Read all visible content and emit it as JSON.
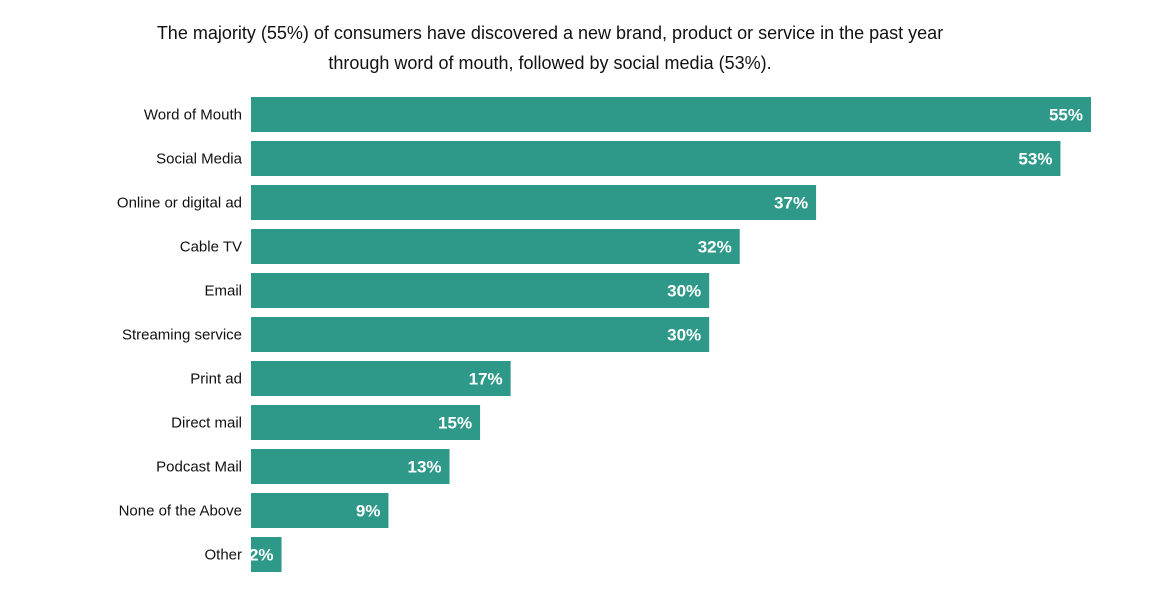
{
  "chart_data": {
    "type": "bar",
    "orientation": "horizontal",
    "title_lines": [
      "The majority (55%) of consumers have discovered a new brand, product or service in the past year",
      "through word of mouth, followed by social media (53%)."
    ],
    "categories": [
      "Word of Mouth",
      "Social Media",
      "Online or digital ad",
      "Cable TV",
      "Email",
      "Streaming service",
      "Print ad",
      "Direct mail",
      "Podcast Mail",
      "None of the Above",
      "Other"
    ],
    "values": [
      55,
      53,
      37,
      32,
      30,
      30,
      17,
      15,
      13,
      9,
      2
    ],
    "value_labels": [
      "55%",
      "53%",
      "37%",
      "32%",
      "30%",
      "30%",
      "17%",
      "15%",
      "13%",
      "9%",
      "2%"
    ],
    "xlim": [
      0,
      55
    ],
    "xlabel": "",
    "ylabel": "",
    "grid": false,
    "legend": "none",
    "bar_color": "#2e9989"
  }
}
